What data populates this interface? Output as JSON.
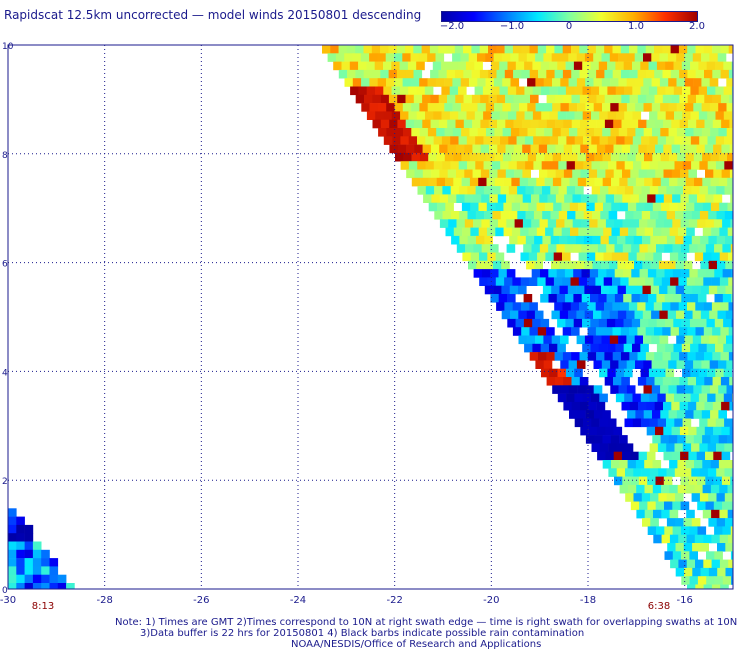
{
  "title": "Rapidscat 12.5km uncorrected — model winds 20150801 descending",
  "colorbar": {
    "stops": [
      "#0000a8",
      "#0000ff",
      "#0078ff",
      "#00e8ff",
      "#80ffa0",
      "#f0ff30",
      "#ffb000",
      "#ff3000",
      "#a00000"
    ],
    "ticks": [
      "−2.0",
      "−1.0",
      "0",
      "1.0",
      "2.0"
    ],
    "range": [
      -2.0,
      2.0
    ]
  },
  "axes": {
    "x_ticks": [
      "-30",
      "-28",
      "-26",
      "-24",
      "-22",
      "-20",
      "-18",
      "-16"
    ],
    "y_ticks": [
      "0",
      "2",
      "4",
      "6",
      "8",
      "10"
    ],
    "x_range": [
      -30,
      -15
    ],
    "y_range": [
      0,
      10
    ],
    "grid": "dotted"
  },
  "time_labels": {
    "left": "8:13",
    "right": "6:38",
    "color": "#8b0000"
  },
  "footer": {
    "line1": "Note: 1) Times are GMT 2)Times correspond to 10N at right swath edge — time is right swath for overlapping swaths at 10N",
    "line2": "3)Data buffer is 22 hrs for 20150801 4) Black barbs indicate possible rain contamination",
    "line3": "NOAA/NESDIS/Office of Research and Applications"
  }
}
